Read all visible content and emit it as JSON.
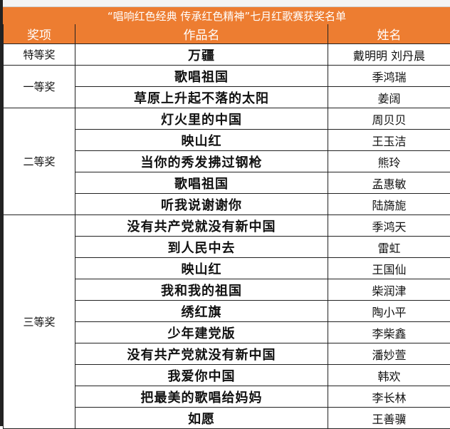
{
  "title": "“唱响红色经典  传承红色精神”七月红歌赛获奖名单",
  "headers": {
    "prize": "奖项",
    "work": "作品名",
    "name": "姓名"
  },
  "colors": {
    "header_bg": "#ed7d31",
    "header_text": "#ffffff"
  },
  "groups": [
    {
      "prize": "特等奖",
      "rows": [
        {
          "work": "万疆",
          "name": "戴明明  刘丹晨"
        }
      ]
    },
    {
      "prize": "一等奖",
      "rows": [
        {
          "work": "歌唱祖国",
          "name": "季鸿瑞"
        },
        {
          "work": "草原上升起不落的太阳",
          "name": "姜阔"
        }
      ]
    },
    {
      "prize": "二等奖",
      "rows": [
        {
          "work": "灯火里的中国",
          "name": "周贝贝"
        },
        {
          "work": "映山红",
          "name": "王玉洁"
        },
        {
          "work": "当你的秀发拂过钢枪",
          "name": "熊玲"
        },
        {
          "work": "歌唱祖国",
          "name": "孟惠敏"
        },
        {
          "work": "听我说谢谢你",
          "name": "陆旖旎"
        }
      ]
    },
    {
      "prize": "三等奖",
      "rows": [
        {
          "work": "没有共产党就没有新中国",
          "name": "季鸿天"
        },
        {
          "work": "到人民中去",
          "name": "雷虹"
        },
        {
          "work": "映山红",
          "name": "王国仙"
        },
        {
          "work": "我和我的祖国",
          "name": "柴润津"
        },
        {
          "work": "绣红旗",
          "name": "陶小平"
        },
        {
          "work": "少年建党版",
          "name": "李柴鑫"
        },
        {
          "work": "没有共产党就没有新中国",
          "name": "潘妙萱"
        },
        {
          "work": "我爱你中国",
          "name": "韩欢"
        },
        {
          "work": "把最美的歌唱给妈妈",
          "name": "李长林"
        },
        {
          "work": "如愿",
          "name": "王善骥"
        }
      ]
    }
  ]
}
